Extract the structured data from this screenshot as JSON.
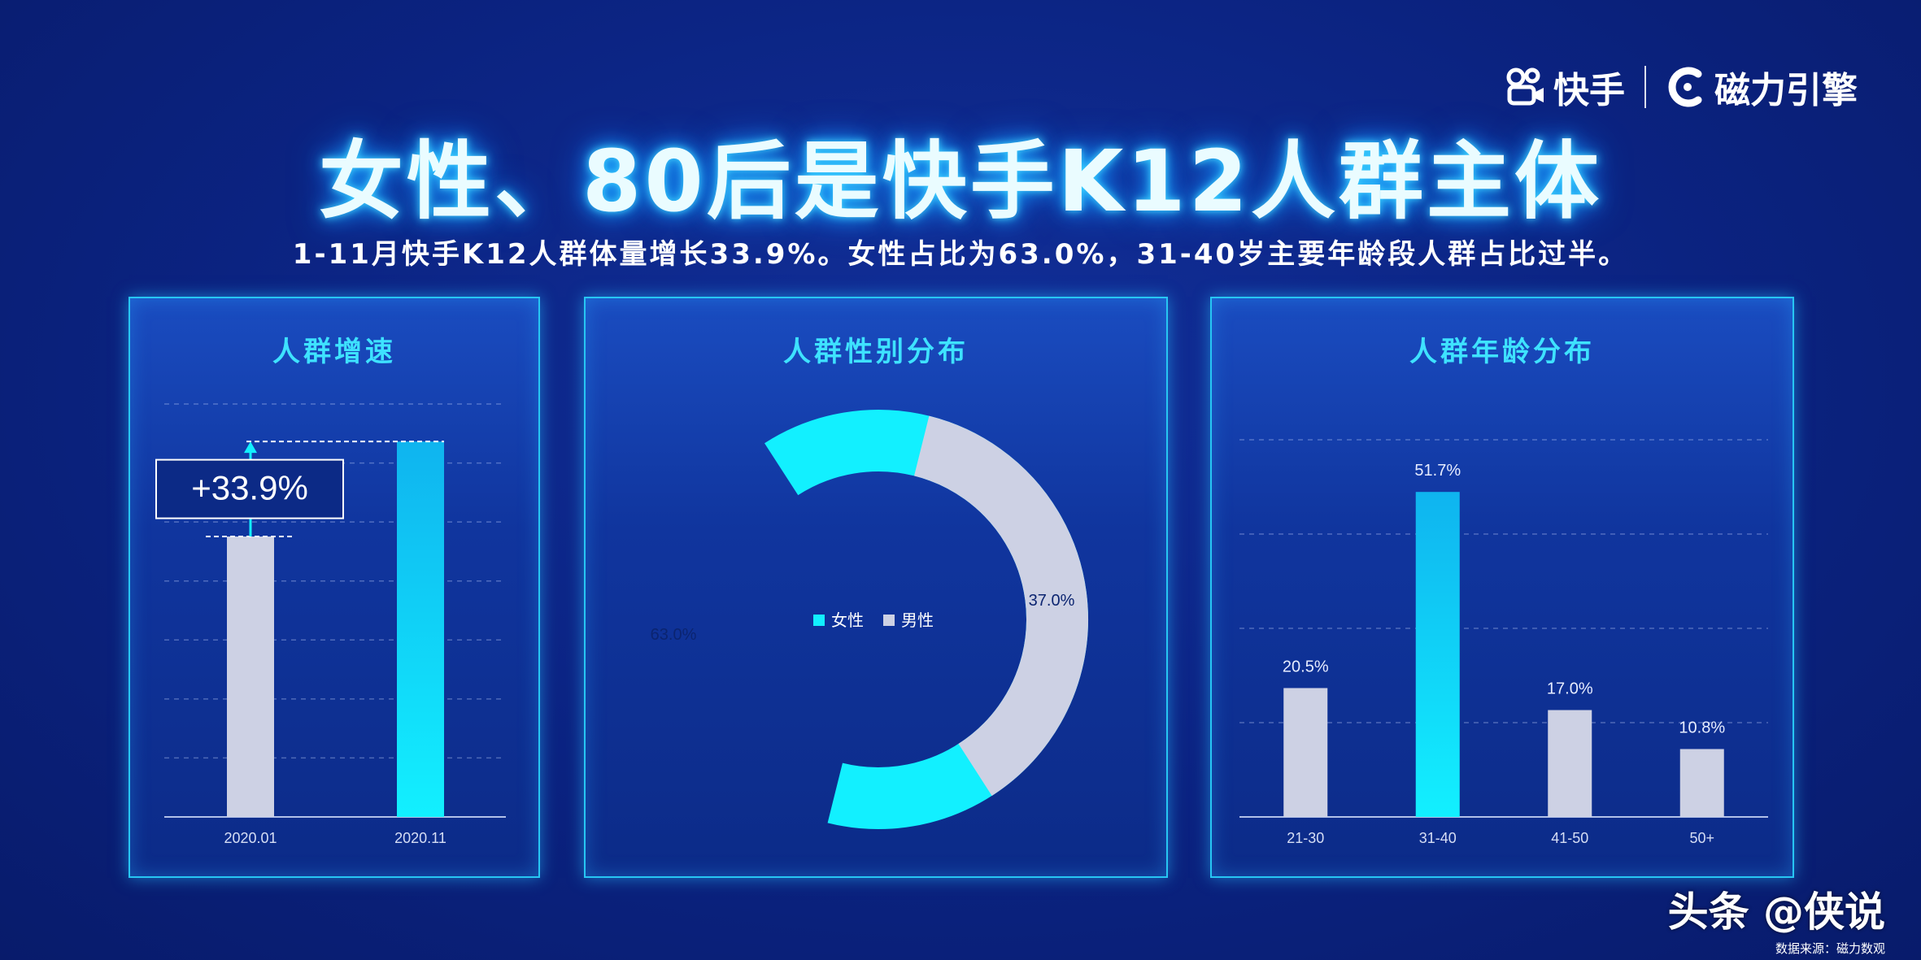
{
  "brand": {
    "kuaishou": "快手",
    "engine": "磁力引擎"
  },
  "title": "女性、80后是快手K12人群主体",
  "subtitle": "1-11月快手K12人群体量增长33.9%。女性占比为63.0%，31-40岁主要年龄段人群占比过半。",
  "footer": {
    "watermark": "头条 @侠说",
    "source": "数据来源：磁力数观"
  },
  "colors": {
    "cyan": "#12f0ff",
    "cyan_top": "#0fb4ef",
    "gray": "#cdd1e4",
    "panel_title": "#3ee2ff"
  },
  "chart_data": [
    {
      "type": "bar",
      "title": "人群增速",
      "categories": [
        "2020.01",
        "2020.11"
      ],
      "values": [
        74.7,
        100
      ],
      "ylim": [
        0,
        110
      ],
      "annotation": "+33.9%",
      "grid": true
    },
    {
      "type": "pie",
      "title": "人群性别分布",
      "labels": [
        "女性",
        "男性"
      ],
      "values": [
        63.0,
        37.0
      ],
      "value_labels": [
        "63.0%",
        "37.0%"
      ],
      "legend": "center",
      "donut": true
    },
    {
      "type": "bar",
      "title": "人群年龄分布",
      "categories": [
        "21-30",
        "31-40",
        "41-50",
        "50+"
      ],
      "values": [
        20.5,
        51.7,
        17.0,
        10.8
      ],
      "value_labels": [
        "20.5%",
        "51.7%",
        "17.0%",
        "10.8%"
      ],
      "ylim": [
        0,
        60
      ],
      "grid": true
    }
  ]
}
